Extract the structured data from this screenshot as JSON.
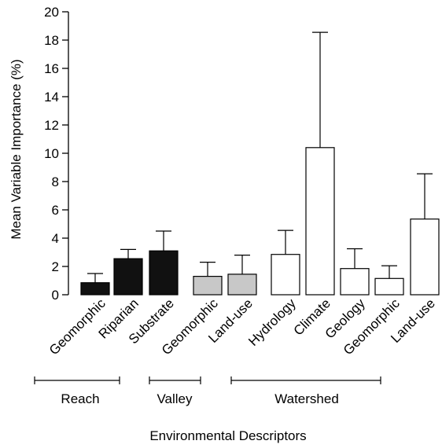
{
  "chart_data": {
    "type": "bar",
    "title": "",
    "xlabel": "Environmental Descriptors",
    "ylabel": "Mean Variable Importance (%)",
    "ylim": [
      0,
      20
    ],
    "yticks": [
      0,
      2,
      4,
      6,
      8,
      10,
      12,
      14,
      16,
      18,
      20
    ],
    "grid": false,
    "categories": [
      "Geomorphic",
      "Riparian",
      "Substrate",
      "Geomorphic",
      "Land-use",
      "Hydrology",
      "Climate",
      "Geology",
      "Geomorphic",
      "Land-use"
    ],
    "values": [
      0.85,
      2.55,
      3.1,
      1.3,
      1.45,
      2.85,
      10.4,
      1.85,
      1.15,
      5.35
    ],
    "error_upper": [
      1.5,
      3.2,
      4.5,
      2.3,
      2.8,
      4.55,
      18.55,
      3.25,
      2.05,
      8.55
    ],
    "bar_colors": [
      "#111111",
      "#111111",
      "#111111",
      "#c8c8c8",
      "#c8c8c8",
      "#ffffff",
      "#ffffff",
      "#ffffff",
      "#ffffff",
      "#ffffff"
    ],
    "groups": [
      {
        "label": "Reach",
        "start": 0,
        "end": 2
      },
      {
        "label": "Valley",
        "start": 3,
        "end": 4
      },
      {
        "label": "Watershed",
        "start": 5,
        "end": 8
      }
    ]
  }
}
